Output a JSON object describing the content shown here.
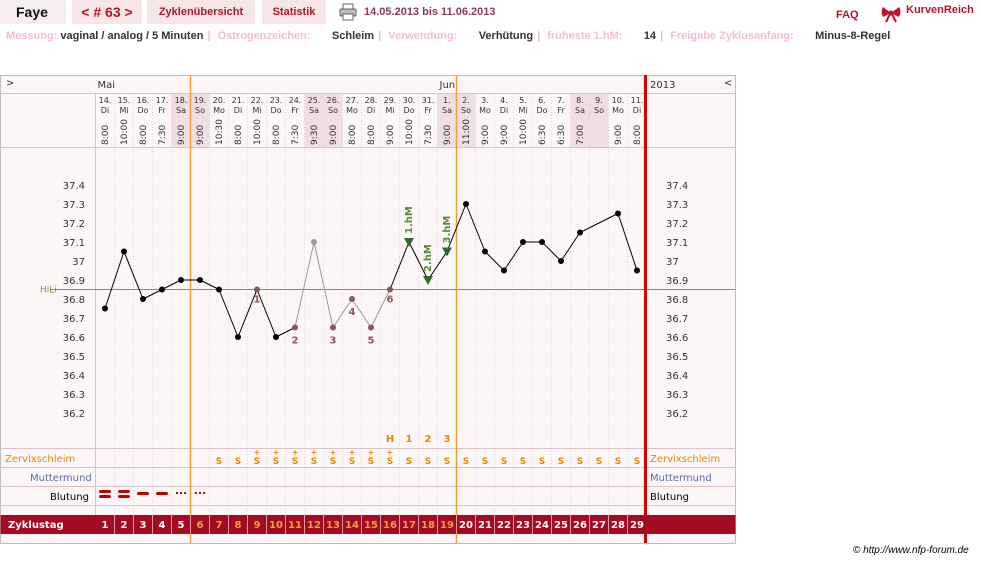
{
  "header": {
    "name": "Faye",
    "cycle_label": "< # 63 >",
    "tab_overview": "Zyklenübersicht",
    "tab_stats": "Statistik",
    "date_range": "14.05.2013 bis 11.06.2013",
    "faq": "FAQ",
    "brand": "KurvenReich",
    "print_icon": "printer-icon",
    "logo_icon": "bow-icon"
  },
  "info": [
    {
      "key": "Messung:",
      "value": "vaginal / analog / 5 Minuten"
    },
    {
      "key": "Östrogenzeichen:",
      "value": "Schleim"
    },
    {
      "key": "Verwendung:",
      "value": "Verhütung"
    },
    {
      "key": "früheste 1.hM:",
      "value": "14"
    },
    {
      "key": "Freigabe Zyklusanfang:",
      "value": "Minus-8-Regel"
    }
  ],
  "nav": {
    "left_arrow": ">",
    "right_arrow": "<",
    "year": "2013",
    "months": [
      {
        "label": "Mai",
        "day": 1
      },
      {
        "label": "Juni",
        "day": 19
      }
    ]
  },
  "days": [
    {
      "n": 1,
      "d": "14.",
      "w": "Di",
      "t": "8:00",
      "we": false
    },
    {
      "n": 2,
      "d": "15.",
      "w": "Mi",
      "t": "10:00",
      "we": false
    },
    {
      "n": 3,
      "d": "16.",
      "w": "Do",
      "t": "8:00",
      "we": false
    },
    {
      "n": 4,
      "d": "17.",
      "w": "Fr",
      "t": "7:30",
      "we": false
    },
    {
      "n": 5,
      "d": "18.",
      "w": "Sa",
      "t": "9:00",
      "we": true
    },
    {
      "n": 6,
      "d": "19.",
      "w": "So",
      "t": "9:00",
      "we": true
    },
    {
      "n": 7,
      "d": "20.",
      "w": "Mo",
      "t": "10:30",
      "we": false
    },
    {
      "n": 8,
      "d": "21.",
      "w": "Di",
      "t": "8:00",
      "we": false
    },
    {
      "n": 9,
      "d": "22.",
      "w": "Mi",
      "t": "10:00",
      "we": false
    },
    {
      "n": 10,
      "d": "23.",
      "w": "Do",
      "t": "8:00",
      "we": false
    },
    {
      "n": 11,
      "d": "24.",
      "w": "Fr",
      "t": "7:30",
      "we": false
    },
    {
      "n": 12,
      "d": "25.",
      "w": "Sa",
      "t": "9:30",
      "we": true
    },
    {
      "n": 13,
      "d": "26.",
      "w": "So",
      "t": "9:00",
      "we": true
    },
    {
      "n": 14,
      "d": "27.",
      "w": "Mo",
      "t": "8:00",
      "we": false
    },
    {
      "n": 15,
      "d": "28.",
      "w": "Di",
      "t": "8:00",
      "we": false
    },
    {
      "n": 16,
      "d": "29.",
      "w": "Mi",
      "t": "9:00",
      "we": false
    },
    {
      "n": 17,
      "d": "30.",
      "w": "Do",
      "t": "10:00",
      "we": false
    },
    {
      "n": 18,
      "d": "31.",
      "w": "Fr",
      "t": "7:30",
      "we": false
    },
    {
      "n": 19,
      "d": "1.",
      "w": "Sa",
      "t": "9:00",
      "we": true
    },
    {
      "n": 20,
      "d": "2.",
      "w": "So",
      "t": "11:00",
      "we": true
    },
    {
      "n": 21,
      "d": "3.",
      "w": "Mo",
      "t": "9:00",
      "we": false
    },
    {
      "n": 22,
      "d": "4.",
      "w": "Di",
      "t": "9:00",
      "we": false
    },
    {
      "n": 23,
      "d": "5.",
      "w": "Mi",
      "t": "10:00",
      "we": false
    },
    {
      "n": 24,
      "d": "6.",
      "w": "Do",
      "t": "6:30",
      "we": false
    },
    {
      "n": 25,
      "d": "7.",
      "w": "Fr",
      "t": "6:30",
      "we": false
    },
    {
      "n": 26,
      "d": "8.",
      "w": "Sa",
      "t": "7:00",
      "we": true
    },
    {
      "n": 27,
      "d": "9.",
      "w": "So",
      "t": "",
      "we": true
    },
    {
      "n": 28,
      "d": "10.",
      "w": "Mo",
      "t": "9:00",
      "we": false
    },
    {
      "n": 29,
      "d": "11.",
      "w": "Di",
      "t": "8:00",
      "we": false
    }
  ],
  "chart_data": {
    "type": "line",
    "title": "",
    "xlabel": "",
    "ylabel": "",
    "ylim": [
      36.1,
      37.5
    ],
    "y_ticks": [
      37.4,
      37.3,
      37.2,
      37.1,
      37.0,
      36.9,
      36.8,
      36.7,
      36.6,
      36.5,
      36.4,
      36.3,
      36.2
    ],
    "y_tick_labels": [
      "37.4",
      "37.3",
      "37.2",
      "37.1",
      "37",
      "36.9",
      "36.8",
      "36.7",
      "36.6",
      "36.5",
      "36.4",
      "36.3",
      "36.2"
    ],
    "x": [
      1,
      2,
      3,
      4,
      5,
      6,
      7,
      8,
      9,
      10,
      11,
      12,
      13,
      14,
      15,
      16,
      17,
      18,
      19,
      20,
      21,
      22,
      23,
      24,
      25,
      26,
      27,
      28,
      29
    ],
    "series": [
      {
        "values": [
          36.75,
          37.05,
          36.8,
          36.85,
          36.9,
          36.9,
          36.85,
          36.6,
          36.85,
          36.6,
          36.65,
          37.1,
          36.65,
          36.8,
          36.65,
          36.85,
          37.1,
          36.9,
          37.05,
          37.3,
          37.05,
          36.95,
          37.1,
          37.1,
          37.0,
          37.15,
          null,
          37.25,
          36.95
        ]
      }
    ],
    "excluded_days": [
      12
    ],
    "low_value_labels": [
      {
        "day": 9,
        "label": "1"
      },
      {
        "day": 11,
        "label": "2"
      },
      {
        "day": 13,
        "label": "3"
      },
      {
        "day": 14,
        "label": "4"
      },
      {
        "day": 15,
        "label": "5"
      },
      {
        "day": 16,
        "label": "6"
      }
    ],
    "high_markers": [
      {
        "day": 17,
        "label": "1.hM"
      },
      {
        "day": 18,
        "label": "2.hM"
      },
      {
        "day": 19,
        "label": "3.hM"
      }
    ],
    "coverline": {
      "value": 36.85,
      "label": "HiLi"
    },
    "verticals": [
      {
        "after_day": 5
      },
      {
        "after_day": 19
      }
    ],
    "zervix_peaks": [
      {
        "day": 16,
        "label": "H"
      },
      {
        "day": 17,
        "label": "1"
      },
      {
        "day": 18,
        "label": "2"
      },
      {
        "day": 19,
        "label": "3"
      }
    ]
  },
  "rows": {
    "zervix_label": "Zervixschleim",
    "muttermund_label": "Muttermund",
    "blutung_label": "Blutung",
    "zyklustag_label": "Zyklustag",
    "zervix": [
      "",
      "",
      "",
      "",
      "",
      "",
      "S",
      "S",
      "S+",
      "S+",
      "S+",
      "S+",
      "S+",
      "S+",
      "S+",
      "S+",
      "S",
      "S",
      "S",
      "S",
      "S",
      "S",
      "S",
      "S",
      "S",
      "S",
      "S",
      "S",
      "S"
    ],
    "blutung": [
      2,
      2,
      1,
      1,
      0.5,
      0.5,
      0,
      0,
      0,
      0,
      0,
      0,
      0,
      0,
      0,
      0,
      0,
      0,
      0,
      0,
      0,
      0,
      0,
      0,
      0,
      0,
      0,
      0,
      0
    ]
  },
  "footer": {
    "copyright": "© http://www.nfp-forum.de"
  }
}
